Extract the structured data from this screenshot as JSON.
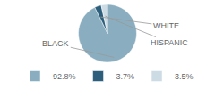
{
  "chart_data": {
    "type": "pie",
    "categories": [
      "BLACK",
      "WHITE",
      "HISPANIC"
    ],
    "values": [
      92.8,
      3.7,
      3.5
    ],
    "value_labels": [
      "92.8%",
      "3.7%",
      "3.5%"
    ],
    "colors": [
      "#8aaec0",
      "#2d5f7c",
      "#cddce4"
    ],
    "legend": "bottom"
  }
}
